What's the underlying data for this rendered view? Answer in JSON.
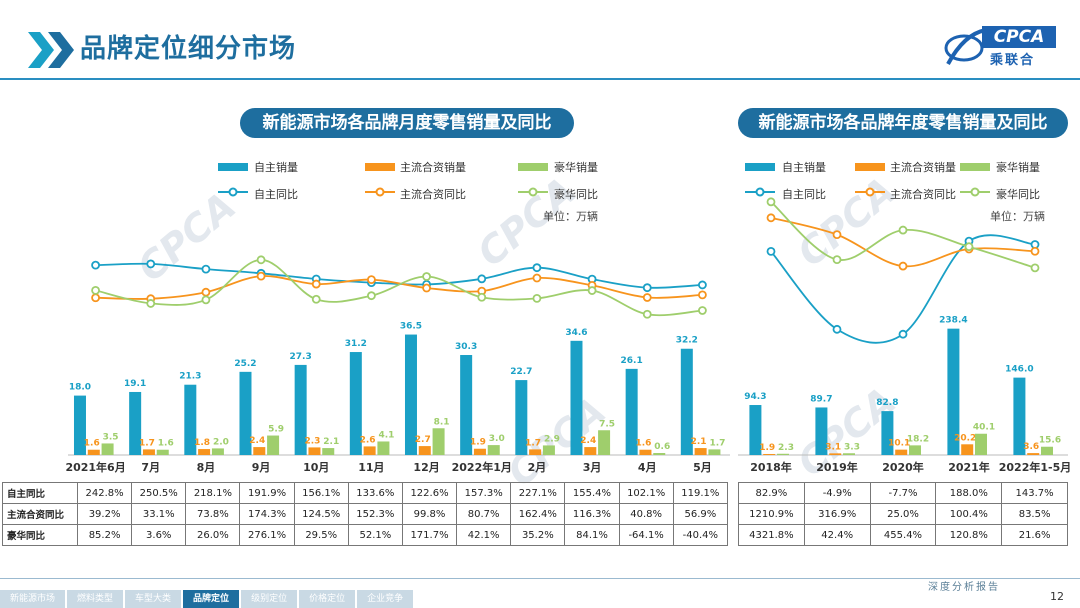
{
  "header": {
    "title": "品牌定位细分市场",
    "logo_text": "CPCA",
    "logo_sub": "乘联合"
  },
  "watermark": "CPCA",
  "colors": {
    "domestic": "#1aa0c6",
    "jv": "#f7941d",
    "luxury": "#9fce6c",
    "theme": "#1e6e9f"
  },
  "legend": {
    "bar_domestic": "自主销量",
    "bar_jv": "主流合资销量",
    "bar_luxury": "豪华销量",
    "line_domestic": "自主同比",
    "line_jv": "主流合资同比",
    "line_luxury": "豪华同比"
  },
  "unit": "单位：万辆",
  "chart_data": [
    {
      "type": "bar",
      "title": "新能源市场各品牌月度零售销量及同比",
      "categories": [
        "2021年6月",
        "7月",
        "8月",
        "9月",
        "10月",
        "11月",
        "12月",
        "2022年1月",
        "2月",
        "3月",
        "4月",
        "5月"
      ],
      "series": [
        {
          "name": "自主销量",
          "values": [
            18.0,
            19.1,
            21.3,
            25.2,
            27.3,
            31.2,
            36.5,
            30.3,
            22.7,
            34.6,
            26.1,
            32.2
          ]
        },
        {
          "name": "主流合资销量",
          "values": [
            1.6,
            1.7,
            1.8,
            2.4,
            2.3,
            2.6,
            2.7,
            1.9,
            1.7,
            2.4,
            1.6,
            2.1
          ]
        },
        {
          "name": "豪华销量",
          "values": [
            3.5,
            1.6,
            2.0,
            5.9,
            2.1,
            4.1,
            8.1,
            3.0,
            2.9,
            7.5,
            0.6,
            1.7
          ]
        }
      ],
      "line_series": [
        {
          "name": "自主同比",
          "values": [
            242.8,
            250.5,
            218.1,
            191.9,
            156.1,
            133.6,
            122.6,
            157.3,
            227.1,
            155.4,
            102.1,
            119.1
          ]
        },
        {
          "name": "主流合资同比",
          "values": [
            39.2,
            33.1,
            73.8,
            174.3,
            124.5,
            152.3,
            99.8,
            80.7,
            162.4,
            116.3,
            40.8,
            56.9
          ]
        },
        {
          "name": "豪华同比",
          "values": [
            85.2,
            3.6,
            26.0,
            276.1,
            29.5,
            52.1,
            171.7,
            42.1,
            35.2,
            84.1,
            -64.1,
            -40.4
          ]
        }
      ],
      "table": {
        "row_labels": [
          "自主同比",
          "主流合资同比",
          "豪华同比"
        ],
        "rows": [
          [
            "242.8%",
            "250.5%",
            "218.1%",
            "191.9%",
            "156.1%",
            "133.6%",
            "122.6%",
            "157.3%",
            "227.1%",
            "155.4%",
            "102.1%",
            "119.1%"
          ],
          [
            "39.2%",
            "33.1%",
            "73.8%",
            "174.3%",
            "124.5%",
            "152.3%",
            "99.8%",
            "80.7%",
            "162.4%",
            "116.3%",
            "40.8%",
            "56.9%"
          ],
          [
            "85.2%",
            "3.6%",
            "26.0%",
            "276.1%",
            "29.5%",
            "52.1%",
            "171.7%",
            "42.1%",
            "35.2%",
            "84.1%",
            "-64.1%",
            "-40.4%"
          ]
        ]
      }
    },
    {
      "type": "bar",
      "title": "新能源市场各品牌年度零售销量及同比",
      "categories": [
        "2018年",
        "2019年",
        "2020年",
        "2021年",
        "2022年1-5月"
      ],
      "series": [
        {
          "name": "自主销量",
          "values": [
            94.3,
            89.7,
            82.8,
            238.4,
            146.0
          ]
        },
        {
          "name": "主流合资销量",
          "values": [
            1.9,
            3.1,
            10.1,
            20.2,
            3.6
          ]
        },
        {
          "name": "豪华销量",
          "values": [
            2.3,
            3.3,
            18.2,
            40.1,
            15.6
          ]
        }
      ],
      "line_series": [
        {
          "name": "自主同比",
          "values": [
            82.9,
            -4.9,
            -7.7,
            188.0,
            143.7
          ]
        },
        {
          "name": "主流合资同比",
          "values": [
            1210.9,
            316.9,
            25.0,
            100.4,
            83.5
          ]
        },
        {
          "name": "豪华同比",
          "values": [
            4321.8,
            42.4,
            455.4,
            120.8,
            21.6
          ]
        }
      ],
      "table": {
        "rows": [
          [
            "82.9%",
            "-4.9%",
            "-7.7%",
            "188.0%",
            "143.7%"
          ],
          [
            "1210.9%",
            "316.9%",
            "25.0%",
            "100.4%",
            "83.5%"
          ],
          [
            "4321.8%",
            "42.4%",
            "455.4%",
            "120.8%",
            "21.6%"
          ]
        ]
      }
    }
  ],
  "footer": {
    "nav": [
      "新能源市场",
      "燃料类型",
      "车型大类",
      "品牌定位",
      "级别定位",
      "价格定位",
      "企业竞争"
    ],
    "active_index": 3,
    "report": "深度分析报告",
    "page": "12"
  }
}
